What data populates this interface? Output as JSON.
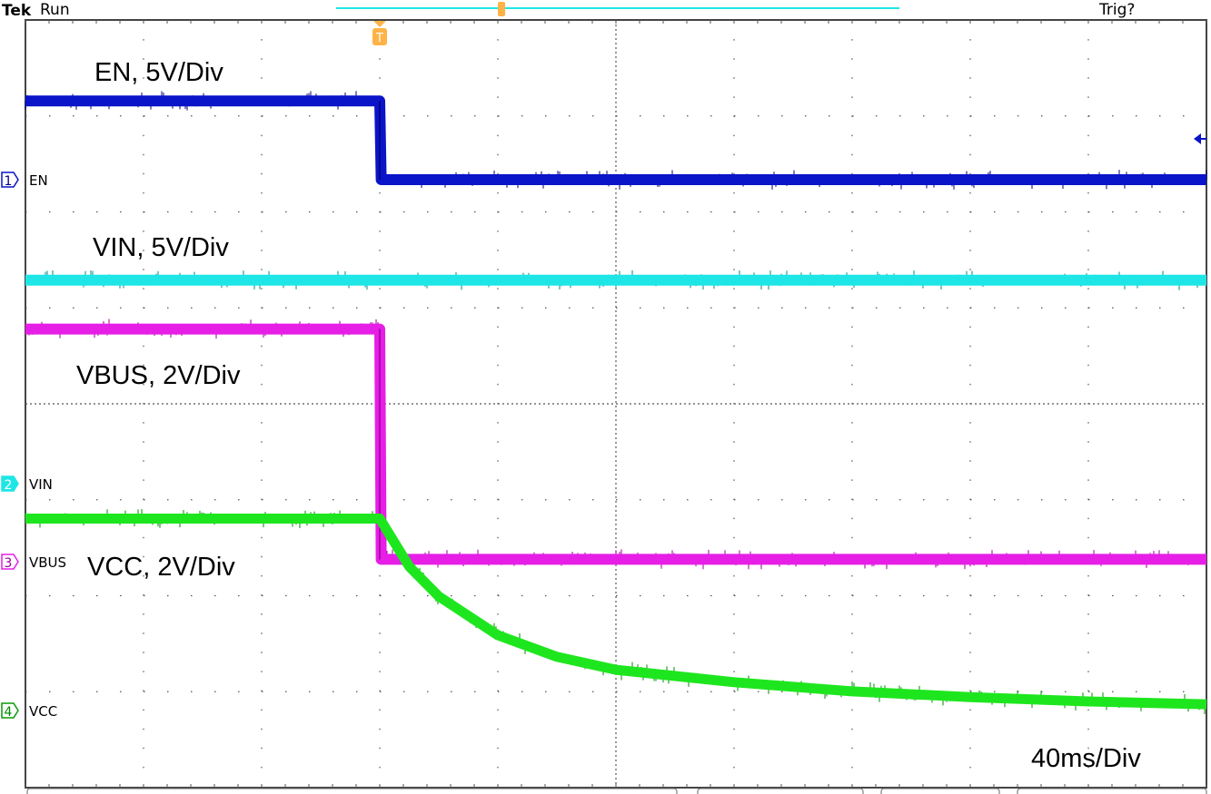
{
  "header": {
    "brand": "Tek",
    "state": "Run",
    "trigger_status": "Trig?",
    "trigger_marker": "T"
  },
  "colors": {
    "ch1": "#0a14c8",
    "ch2": "#1ee6e6",
    "ch3": "#e61ee6",
    "ch4": "#1ee61e",
    "trigger": "#ffb347",
    "grid": "#555555"
  },
  "chart_data": {
    "type": "line",
    "title": "",
    "xlabel": "",
    "ylabel": "",
    "time_per_div_label": "40ms/Div",
    "time_unit": "ms",
    "xlim": [
      -120,
      280
    ],
    "x_divisions": 10,
    "y_divisions": 8,
    "trigger_time": 0,
    "grid": true,
    "series": [
      {
        "channel": "1",
        "name": "EN",
        "annotation": "EN, 5V/Div",
        "volts_per_div": 5,
        "points": [
          [
            -120,
            4.1
          ],
          [
            0,
            4.1
          ],
          [
            0.5,
            0.0
          ],
          [
            280,
            0.0
          ]
        ]
      },
      {
        "channel": "2",
        "name": "VIN",
        "annotation": "VIN, 5V/Div",
        "volts_per_div": 5,
        "points": [
          [
            -120,
            10.6
          ],
          [
            280,
            10.6
          ]
        ]
      },
      {
        "channel": "3",
        "name": "VBUS",
        "annotation": "VBUS, 2V/Div",
        "volts_per_div": 2,
        "points": [
          [
            -120,
            4.85
          ],
          [
            0,
            4.85
          ],
          [
            0.5,
            0.05
          ],
          [
            280,
            0.05
          ]
        ]
      },
      {
        "channel": "4",
        "name": "VCC",
        "annotation": "VCC, 2V/Div",
        "volts_per_div": 2,
        "points": [
          [
            -120,
            4.0
          ],
          [
            0,
            4.0
          ],
          [
            10,
            3.0
          ],
          [
            20,
            2.38
          ],
          [
            40,
            1.57
          ],
          [
            60,
            1.12
          ],
          [
            80,
            0.85
          ],
          [
            120,
            0.59
          ],
          [
            160,
            0.4
          ],
          [
            200,
            0.28
          ],
          [
            240,
            0.19
          ],
          [
            280,
            0.13
          ]
        ]
      }
    ]
  }
}
